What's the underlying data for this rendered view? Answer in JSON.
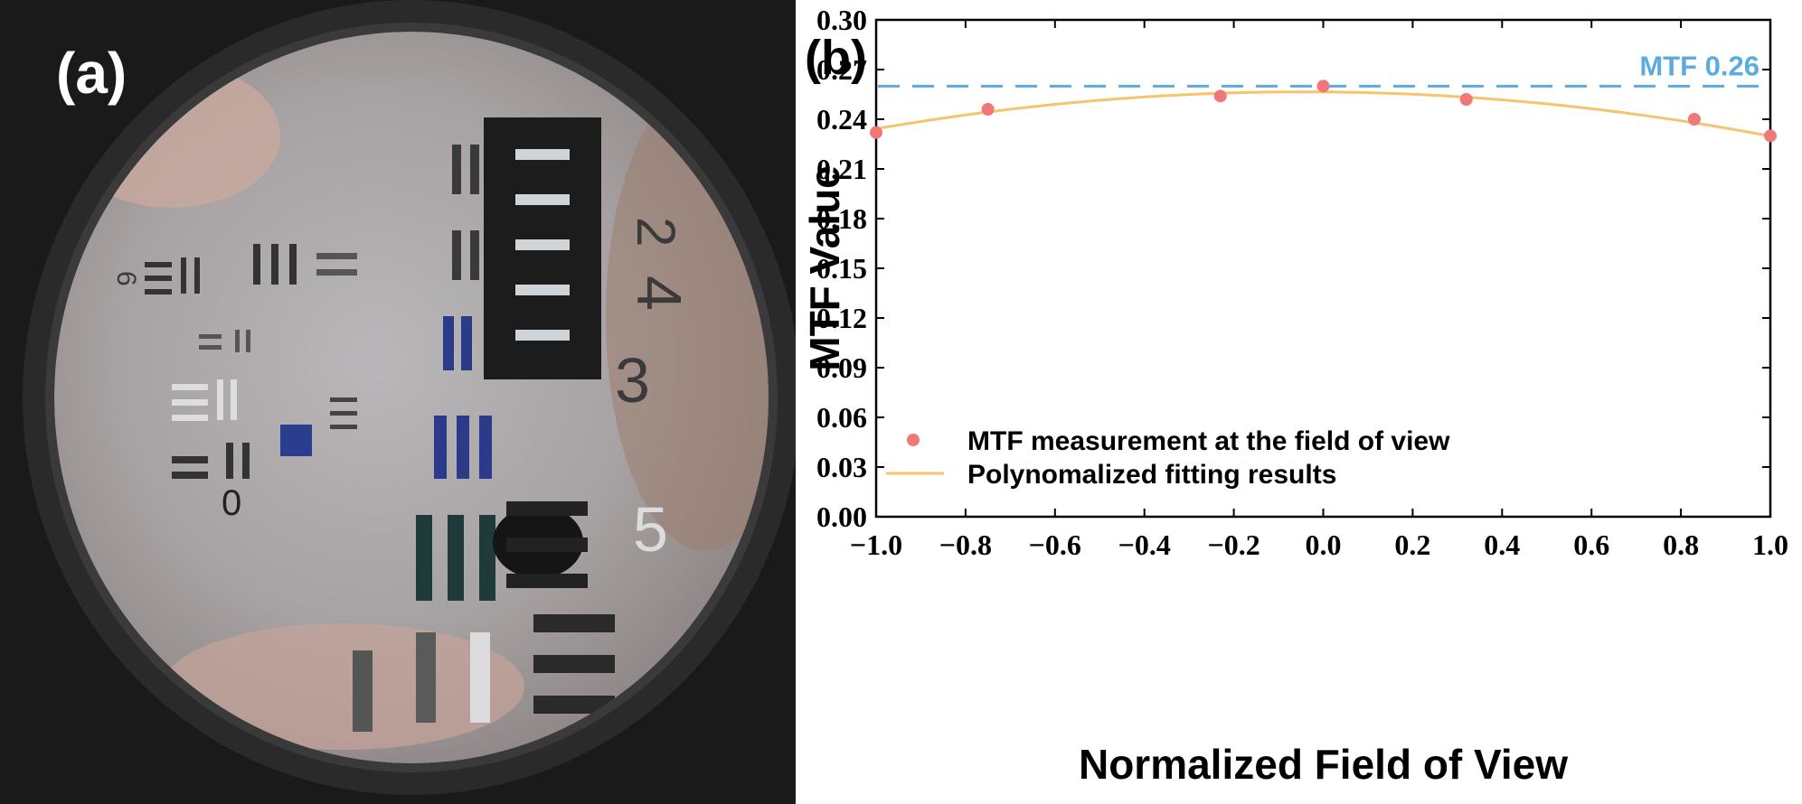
{
  "panel_a": {
    "label": "(a)",
    "target_numbers": [
      "0",
      "2",
      "3",
      "4",
      "5",
      "6"
    ]
  },
  "colors": {
    "measurement": "#f07878",
    "fit": "#f5c46c",
    "reference": "#5aabdf",
    "axis": "#000000"
  },
  "chart_data": {
    "type": "scatter",
    "panel_label": "(b)",
    "xlabel": "Normalized Field of View",
    "ylabel": "MTF Value",
    "xlim": [
      -1.0,
      1.0
    ],
    "ylim": [
      0.0,
      0.3
    ],
    "x_ticks": [
      -1.0,
      -0.8,
      -0.6,
      -0.4,
      -0.2,
      0.0,
      0.2,
      0.4,
      0.6,
      0.8,
      1.0
    ],
    "x_tick_labels": [
      "−1.0",
      "−0.8",
      "−0.6",
      "−0.4",
      "−0.2",
      "0.0",
      "0.2",
      "0.4",
      "0.6",
      "0.8",
      "1.0"
    ],
    "y_ticks": [
      0.0,
      0.03,
      0.06,
      0.09,
      0.12,
      0.15,
      0.18,
      0.21,
      0.24,
      0.27,
      0.3
    ],
    "y_tick_labels": [
      "0.00",
      "0.03",
      "0.06",
      "0.09",
      "0.12",
      "0.15",
      "0.18",
      "0.21",
      "0.24",
      "0.27",
      "0.30"
    ],
    "series": [
      {
        "name": "MTF measurement at the field of view",
        "kind": "scatter",
        "x": [
          -1.0,
          -0.75,
          -0.23,
          0.0,
          0.32,
          0.83,
          1.0
        ],
        "y": [
          0.232,
          0.246,
          0.254,
          0.26,
          0.252,
          0.24,
          0.23
        ]
      },
      {
        "name": "Polynomalized fitting results",
        "kind": "line",
        "poly_coefficients": [
          0.2565,
          -0.0022,
          -0.0245
        ]
      }
    ],
    "reference_line": {
      "y": 0.26,
      "label": "MTF 0.26"
    },
    "legend_position": "bottom-left",
    "grid": false
  }
}
